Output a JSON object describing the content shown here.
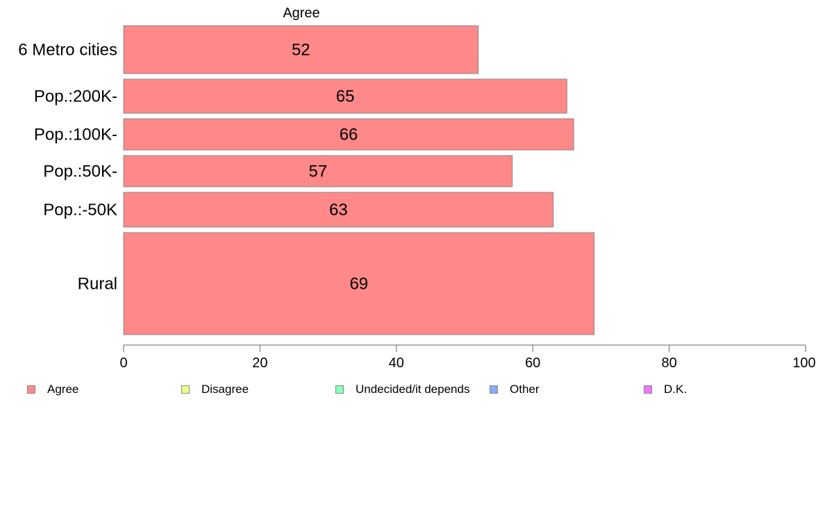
{
  "chart_data": {
    "type": "bar",
    "orientation": "horizontal",
    "title": "Agree",
    "categories": [
      "6 Metro cities",
      "Pop.:200K-",
      "Pop.:100K-",
      "Pop.:50K-",
      "Pop.:-50K",
      "Rural"
    ],
    "series": [
      {
        "name": "Agree",
        "values": [
          52,
          65,
          66,
          57,
          63,
          69
        ],
        "color": "#ff8888"
      }
    ],
    "xlim": [
      0,
      100
    ],
    "xticks": [
      "0",
      "20",
      "40",
      "60",
      "80",
      "100"
    ],
    "grid": false,
    "legend": {
      "position": "bottom",
      "entries": [
        {
          "label": "Agree",
          "color": "#ff8888"
        },
        {
          "label": "Disagree",
          "color": "#eeff88"
        },
        {
          "label": "Undecided/it depends",
          "color": "#88ffbb"
        },
        {
          "label": "Other",
          "color": "#88aaff"
        },
        {
          "label": "D.K.",
          "color": "#ee77ff"
        }
      ]
    }
  }
}
